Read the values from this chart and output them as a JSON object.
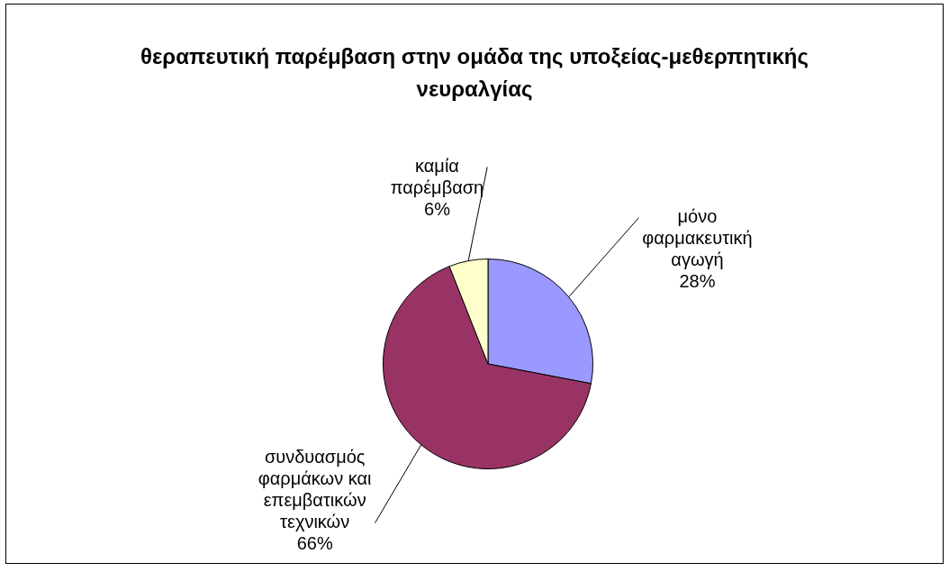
{
  "chart_data": {
    "type": "pie",
    "title": "θεραπευτική παρέμβαση στην ομάδα της υποξείας-μεθερπητικής νευραλγίας",
    "categories": [
      "μόνο φαρμακευτική αγωγή",
      "συνδυασμός φαρμάκων και επεμβατικών τεχνικών",
      "καμία παρέμβαση"
    ],
    "values": [
      28,
      66,
      6
    ],
    "value_labels": [
      "28%",
      "66%",
      "6%"
    ],
    "colors": [
      "#9999ff",
      "#993366",
      "#ffffcc"
    ],
    "legend": false
  }
}
